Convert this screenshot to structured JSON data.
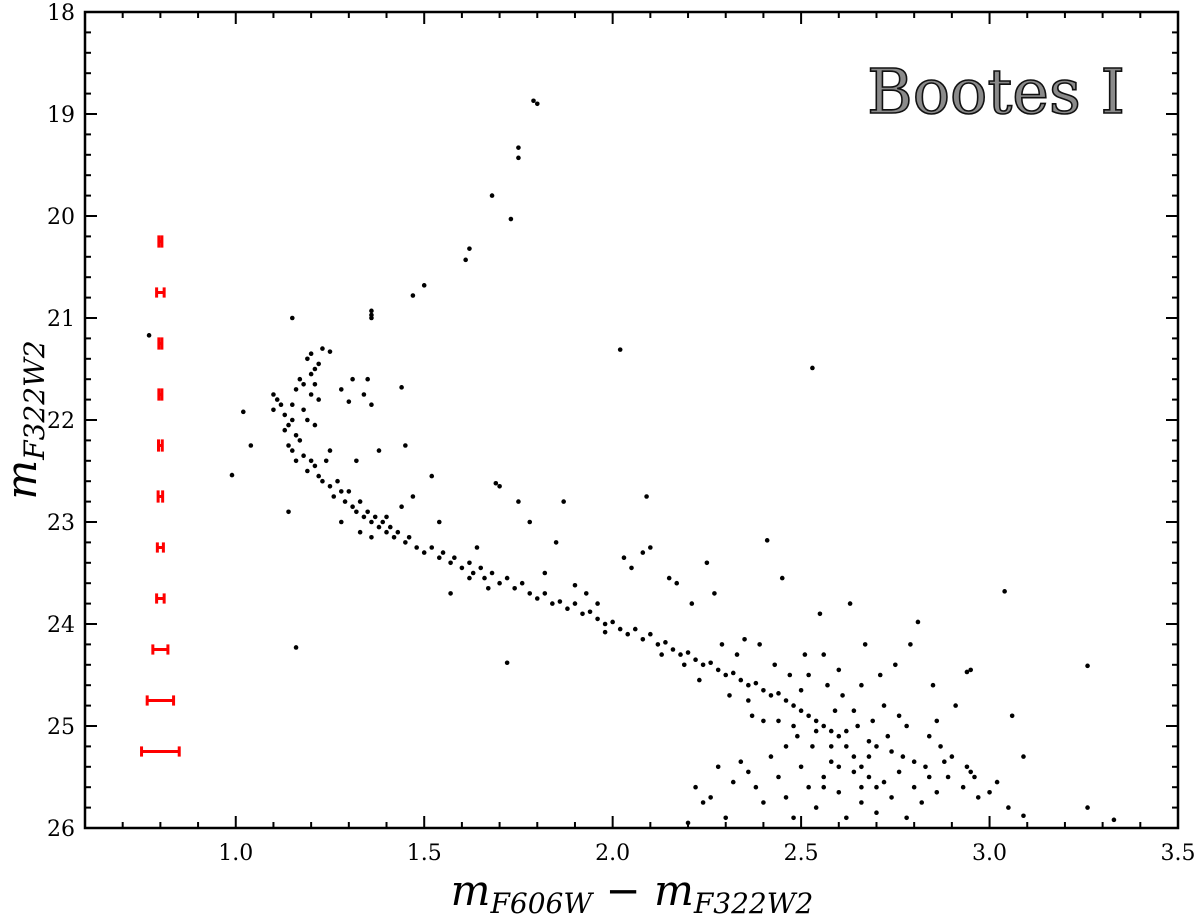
{
  "chart_data": {
    "type": "scatter",
    "title": "Bootes I",
    "xlabel": {
      "m1": "m",
      "sub1": "F606W",
      "minus": " − ",
      "m2": "m",
      "sub2": "F322W2"
    },
    "ylabel": {
      "m": "m",
      "sub": "F322W2"
    },
    "xlim": [
      0.6,
      3.5
    ],
    "ylim": [
      26,
      18
    ],
    "y_inverted": true,
    "grid": false,
    "xticks": [
      "1.0",
      "1.5",
      "2.0",
      "2.5",
      "3.0",
      "3.5"
    ],
    "yticks": [
      "18",
      "19",
      "20",
      "21",
      "22",
      "23",
      "24",
      "25",
      "26"
    ],
    "point_color": "#000000",
    "errorbar_color": "#ff0000",
    "error_bars": {
      "x": 0.8,
      "y": [
        20.25,
        20.75,
        21.25,
        21.75,
        22.25,
        22.75,
        23.25,
        23.75,
        24.25,
        24.75,
        25.25
      ],
      "xerr": [
        0.004,
        0.01,
        0.004,
        0.004,
        0.005,
        0.006,
        0.008,
        0.01,
        0.02,
        0.035,
        0.05
      ],
      "yerr": [
        0.06,
        0.05,
        0.06,
        0.06,
        0.06,
        0.06,
        0.05,
        0.05,
        0.05,
        0.05,
        0.05
      ]
    },
    "points": [
      [
        1.79,
        18.87
      ],
      [
        1.8,
        18.9
      ],
      [
        1.75,
        19.33
      ],
      [
        1.75,
        19.43
      ],
      [
        1.68,
        19.8
      ],
      [
        1.73,
        20.03
      ],
      [
        1.62,
        20.32
      ],
      [
        1.61,
        20.43
      ],
      [
        1.5,
        20.68
      ],
      [
        1.47,
        20.78
      ],
      [
        1.36,
        20.93
      ],
      [
        1.36,
        20.97
      ],
      [
        1.36,
        21.0
      ],
      [
        1.15,
        21.0
      ],
      [
        2.02,
        21.31
      ],
      [
        2.53,
        21.49
      ],
      [
        0.99,
        22.54
      ],
      [
        0.77,
        21.17
      ],
      [
        1.16,
        24.23
      ],
      [
        1.72,
        24.38
      ],
      [
        1.14,
        22.9
      ],
      [
        3.04,
        23.68
      ],
      [
        3.26,
        24.41
      ],
      [
        3.09,
        25.3
      ],
      [
        3.06,
        24.9
      ],
      [
        3.26,
        25.8
      ],
      [
        3.33,
        25.92
      ],
      [
        3.09,
        25.88
      ],
      [
        2.95,
        24.45
      ],
      [
        2.94,
        24.47
      ],
      [
        1.1,
        21.75
      ],
      [
        1.11,
        21.8
      ],
      [
        1.12,
        21.85
      ],
      [
        1.1,
        21.9
      ],
      [
        1.13,
        21.95
      ],
      [
        1.14,
        22.05
      ],
      [
        1.13,
        22.1
      ],
      [
        1.15,
        21.85
      ],
      [
        1.16,
        21.7
      ],
      [
        1.17,
        21.6
      ],
      [
        1.18,
        21.65
      ],
      [
        1.2,
        21.55
      ],
      [
        1.21,
        21.5
      ],
      [
        1.22,
        21.45
      ],
      [
        1.2,
        21.35
      ],
      [
        1.23,
        21.3
      ],
      [
        1.25,
        21.33
      ],
      [
        1.19,
        21.4
      ],
      [
        1.15,
        22.0
      ],
      [
        1.16,
        22.15
      ],
      [
        1.17,
        22.2
      ],
      [
        1.15,
        22.3
      ],
      [
        1.18,
        22.35
      ],
      [
        1.2,
        22.4
      ],
      [
        1.19,
        22.5
      ],
      [
        1.21,
        22.45
      ],
      [
        1.22,
        22.55
      ],
      [
        1.14,
        22.25
      ],
      [
        1.16,
        22.4
      ],
      [
        1.18,
        21.9
      ],
      [
        1.19,
        22.0
      ],
      [
        1.21,
        22.05
      ],
      [
        1.2,
        21.75
      ],
      [
        1.22,
        21.8
      ],
      [
        1.21,
        21.65
      ],
      [
        1.25,
        22.3
      ],
      [
        1.24,
        22.4
      ],
      [
        1.02,
        21.92
      ],
      [
        1.04,
        22.25
      ],
      [
        1.31,
        21.6
      ],
      [
        1.35,
        21.6
      ],
      [
        1.34,
        21.75
      ],
      [
        1.3,
        21.82
      ],
      [
        1.28,
        21.7
      ],
      [
        1.36,
        21.85
      ],
      [
        1.44,
        21.68
      ],
      [
        1.38,
        22.3
      ],
      [
        1.45,
        22.25
      ],
      [
        1.32,
        22.4
      ],
      [
        1.23,
        22.6
      ],
      [
        1.25,
        22.65
      ],
      [
        1.27,
        22.6
      ],
      [
        1.28,
        22.7
      ],
      [
        1.26,
        22.75
      ],
      [
        1.29,
        22.8
      ],
      [
        1.3,
        22.7
      ],
      [
        1.31,
        22.85
      ],
      [
        1.32,
        22.9
      ],
      [
        1.33,
        22.8
      ],
      [
        1.34,
        22.95
      ],
      [
        1.35,
        22.9
      ],
      [
        1.36,
        23.0
      ],
      [
        1.37,
        22.95
      ],
      [
        1.38,
        23.05
      ],
      [
        1.39,
        23.0
      ],
      [
        1.4,
        23.1
      ],
      [
        1.41,
        23.05
      ],
      [
        1.42,
        23.15
      ],
      [
        1.43,
        23.1
      ],
      [
        1.45,
        23.2
      ],
      [
        1.46,
        23.15
      ],
      [
        1.48,
        23.25
      ],
      [
        1.5,
        23.3
      ],
      [
        1.52,
        23.25
      ],
      [
        1.54,
        23.35
      ],
      [
        1.55,
        23.3
      ],
      [
        1.57,
        23.4
      ],
      [
        1.58,
        23.35
      ],
      [
        1.6,
        23.45
      ],
      [
        1.62,
        23.4
      ],
      [
        1.63,
        23.5
      ],
      [
        1.65,
        23.45
      ],
      [
        1.66,
        23.55
      ],
      [
        1.68,
        23.5
      ],
      [
        1.7,
        23.6
      ],
      [
        1.72,
        23.55
      ],
      [
        1.74,
        23.65
      ],
      [
        1.76,
        23.6
      ],
      [
        1.78,
        23.7
      ],
      [
        1.8,
        23.75
      ],
      [
        1.82,
        23.7
      ],
      [
        1.84,
        23.8
      ],
      [
        1.86,
        23.78
      ],
      [
        1.88,
        23.85
      ],
      [
        1.9,
        23.8
      ],
      [
        1.92,
        23.9
      ],
      [
        1.94,
        23.88
      ],
      [
        1.96,
        23.95
      ],
      [
        1.98,
        24.0
      ],
      [
        2.0,
        23.98
      ],
      [
        2.02,
        24.05
      ],
      [
        2.04,
        24.1
      ],
      [
        2.06,
        24.05
      ],
      [
        2.08,
        24.15
      ],
      [
        2.1,
        24.1
      ],
      [
        2.12,
        24.2
      ],
      [
        2.14,
        24.18
      ],
      [
        2.16,
        24.25
      ],
      [
        2.18,
        24.3
      ],
      [
        2.2,
        24.28
      ],
      [
        2.22,
        24.35
      ],
      [
        2.24,
        24.4
      ],
      [
        2.26,
        24.38
      ],
      [
        2.28,
        24.45
      ],
      [
        2.3,
        24.5
      ],
      [
        2.32,
        24.48
      ],
      [
        2.34,
        24.55
      ],
      [
        2.36,
        24.6
      ],
      [
        2.38,
        24.58
      ],
      [
        2.4,
        24.65
      ],
      [
        2.42,
        24.7
      ],
      [
        2.44,
        24.68
      ],
      [
        2.46,
        24.75
      ],
      [
        2.48,
        24.8
      ],
      [
        2.5,
        24.85
      ],
      [
        2.52,
        24.9
      ],
      [
        2.54,
        24.95
      ],
      [
        2.56,
        25.0
      ],
      [
        2.58,
        25.05
      ],
      [
        2.6,
        25.1
      ],
      [
        2.62,
        25.2
      ],
      [
        2.64,
        25.3
      ],
      [
        2.66,
        25.4
      ],
      [
        2.68,
        25.5
      ],
      [
        2.7,
        25.6
      ],
      [
        1.28,
        23.0
      ],
      [
        1.33,
        23.1
      ],
      [
        1.36,
        23.15
      ],
      [
        1.4,
        22.95
      ],
      [
        1.44,
        22.85
      ],
      [
        1.47,
        22.75
      ],
      [
        1.52,
        22.55
      ],
      [
        1.54,
        23.0
      ],
      [
        1.57,
        23.7
      ],
      [
        1.62,
        23.55
      ],
      [
        1.64,
        23.25
      ],
      [
        1.67,
        23.65
      ],
      [
        1.69,
        22.62
      ],
      [
        1.7,
        22.65
      ],
      [
        1.75,
        22.8
      ],
      [
        1.78,
        23.0
      ],
      [
        1.82,
        23.5
      ],
      [
        1.85,
        23.2
      ],
      [
        1.87,
        22.8
      ],
      [
        1.9,
        23.62
      ],
      [
        1.93,
        23.7
      ],
      [
        1.96,
        23.8
      ],
      [
        1.98,
        24.08
      ],
      [
        2.03,
        23.35
      ],
      [
        2.05,
        23.45
      ],
      [
        2.08,
        23.3
      ],
      [
        2.09,
        22.75
      ],
      [
        2.1,
        23.25
      ],
      [
        2.13,
        24.3
      ],
      [
        2.15,
        23.55
      ],
      [
        2.17,
        23.6
      ],
      [
        2.19,
        24.4
      ],
      [
        2.21,
        23.8
      ],
      [
        2.23,
        24.55
      ],
      [
        2.25,
        23.4
      ],
      [
        2.27,
        23.7
      ],
      [
        2.29,
        24.2
      ],
      [
        2.31,
        24.7
      ],
      [
        2.33,
        24.3
      ],
      [
        2.35,
        24.15
      ],
      [
        2.37,
        24.9
      ],
      [
        2.39,
        24.2
      ],
      [
        2.41,
        23.18
      ],
      [
        2.43,
        24.4
      ],
      [
        2.45,
        23.55
      ],
      [
        2.47,
        24.5
      ],
      [
        2.49,
        25.1
      ],
      [
        2.51,
        24.3
      ],
      [
        2.53,
        25.2
      ],
      [
        2.55,
        23.9
      ],
      [
        2.57,
        24.6
      ],
      [
        2.59,
        24.85
      ],
      [
        2.61,
        24.7
      ],
      [
        2.63,
        23.8
      ],
      [
        2.65,
        25.0
      ],
      [
        2.67,
        24.2
      ],
      [
        2.69,
        24.95
      ],
      [
        2.71,
        24.5
      ],
      [
        2.73,
        25.1
      ],
      [
        2.75,
        24.4
      ],
      [
        2.77,
        25.3
      ],
      [
        2.79,
        24.2
      ],
      [
        2.81,
        23.98
      ],
      [
        2.83,
        25.4
      ],
      [
        2.85,
        24.6
      ],
      [
        2.87,
        25.2
      ],
      [
        2.89,
        25.5
      ],
      [
        2.91,
        24.8
      ],
      [
        2.93,
        25.6
      ],
      [
        2.95,
        25.45
      ],
      [
        2.97,
        25.7
      ],
      [
        3.0,
        25.65
      ],
      [
        3.02,
        25.55
      ],
      [
        2.42,
        25.3
      ],
      [
        2.44,
        25.5
      ],
      [
        2.46,
        25.7
      ],
      [
        2.48,
        25.9
      ],
      [
        2.5,
        25.4
      ],
      [
        2.52,
        25.6
      ],
      [
        2.54,
        25.8
      ],
      [
        2.56,
        25.5
      ],
      [
        2.58,
        25.35
      ],
      [
        2.6,
        25.65
      ],
      [
        2.62,
        25.9
      ],
      [
        2.64,
        25.45
      ],
      [
        2.66,
        25.75
      ],
      [
        2.68,
        25.3
      ],
      [
        2.7,
        25.85
      ],
      [
        2.72,
        25.55
      ],
      [
        2.74,
        25.7
      ],
      [
        2.76,
        25.45
      ],
      [
        2.78,
        25.9
      ],
      [
        2.8,
        25.6
      ],
      [
        2.82,
        25.75
      ],
      [
        2.84,
        25.5
      ],
      [
        2.86,
        25.65
      ],
      [
        2.88,
        25.35
      ],
      [
        2.36,
        25.45
      ],
      [
        2.38,
        25.6
      ],
      [
        2.4,
        25.75
      ],
      [
        2.34,
        25.35
      ],
      [
        2.32,
        25.55
      ],
      [
        2.3,
        25.9
      ],
      [
        2.26,
        25.7
      ],
      [
        2.24,
        25.75
      ],
      [
        2.2,
        25.95
      ],
      [
        2.28,
        25.4
      ],
      [
        2.22,
        25.6
      ],
      [
        2.46,
        25.2
      ],
      [
        2.52,
        24.5
      ],
      [
        2.56,
        24.3
      ],
      [
        2.6,
        24.45
      ],
      [
        2.66,
        24.6
      ],
      [
        2.72,
        24.8
      ],
      [
        2.76,
        24.9
      ],
      [
        2.68,
        25.15
      ],
      [
        2.58,
        25.2
      ],
      [
        2.48,
        25.0
      ],
      [
        2.4,
        24.95
      ],
      [
        2.36,
        24.75
      ],
      [
        2.5,
        24.65
      ],
      [
        2.54,
        25.05
      ],
      [
        2.62,
        25.05
      ],
      [
        2.64,
        24.85
      ],
      [
        2.7,
        25.2
      ],
      [
        2.74,
        25.25
      ],
      [
        2.78,
        25.0
      ],
      [
        2.8,
        25.35
      ],
      [
        2.84,
        25.1
      ],
      [
        2.86,
        24.95
      ],
      [
        2.9,
        25.3
      ],
      [
        2.94,
        25.4
      ],
      [
        2.96,
        25.5
      ],
      [
        3.05,
        25.8
      ],
      [
        2.44,
        24.95
      ],
      [
        2.56,
        25.6
      ],
      [
        2.6,
        25.4
      ],
      [
        2.66,
        25.6
      ]
    ]
  }
}
